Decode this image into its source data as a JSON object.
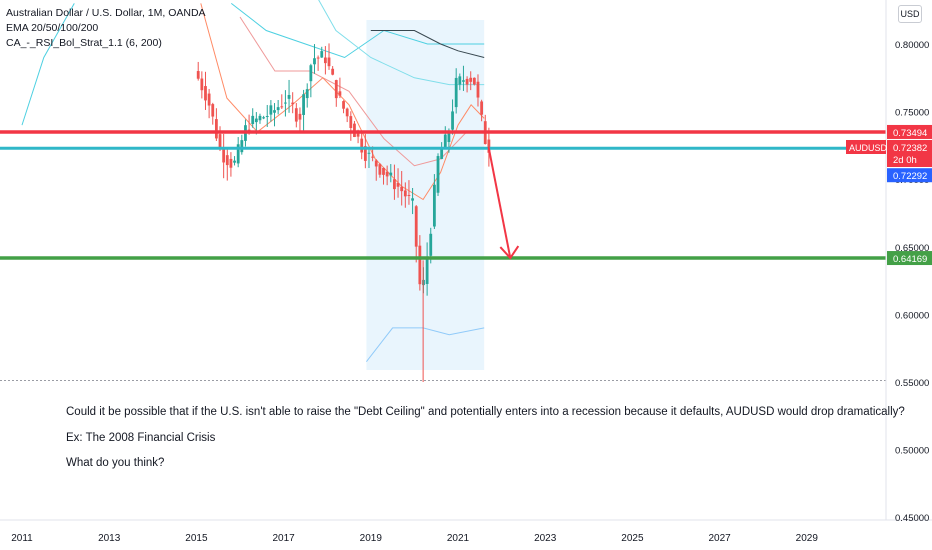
{
  "header": {
    "symbol_line": "Australian Dollar / U.S. Dollar, 1M, OANDA",
    "indicator_1": "EMA 20/50/100/200",
    "indicator_2": "CA_-_RSI_Bol_Strat_1.1 (6, 200)",
    "currency_button": "USD"
  },
  "annotation_lines": [
    "Could it be possible that if the U.S. isn't able to raise the \"Debt Ceiling\" and potentially enters into a recession because it defaults, AUDUSD would drop dramatically?",
    "Ex: The 2008 Financial Crisis",
    "What do you think?"
  ],
  "price_tags": {
    "red_level": "0.73494",
    "current_price": "0.72382",
    "countdown": "2d 0h",
    "blue_level": "0.72292",
    "green_level": "0.64169",
    "symbol_tag": "AUDUSD"
  },
  "colors": {
    "red_line": "#f23645",
    "blue_line": "#2fb7c8",
    "green_line": "#43a047",
    "candle_up": "#26a69a",
    "candle_down": "#ef5350",
    "arrow": "#f23645",
    "shade": "#e3f2fd"
  },
  "chart_data": {
    "type": "line",
    "title": "Australian Dollar / U.S. Dollar, 1M, OANDA",
    "x_ticks": [
      "2011",
      "2013",
      "2015",
      "2017",
      "2019",
      "2021",
      "2023",
      "2025",
      "2027",
      "2029"
    ],
    "y_ticks": [
      "0.80000",
      "0.75000",
      "0.70000",
      "0.65000",
      "0.60000",
      "0.55000",
      "0.50000",
      "0.45000"
    ],
    "ylim": [
      0.44,
      0.83
    ],
    "xlim": [
      2011.0,
      2030.6
    ],
    "price_series": {
      "x": [
        2015.0,
        2015.3,
        2015.6,
        2015.9,
        2016.2,
        2016.5,
        2016.8,
        2017.1,
        2017.4,
        2017.7,
        2018.0,
        2018.3,
        2018.6,
        2018.9,
        2019.2,
        2019.5,
        2019.8,
        2020.0,
        2020.2,
        2020.4,
        2020.6,
        2020.8,
        2021.0,
        2021.2,
        2021.4,
        2021.6,
        2021.7
      ],
      "y": [
        0.78,
        0.76,
        0.72,
        0.71,
        0.74,
        0.745,
        0.75,
        0.76,
        0.745,
        0.79,
        0.79,
        0.76,
        0.74,
        0.72,
        0.71,
        0.7,
        0.69,
        0.68,
        0.61,
        0.66,
        0.72,
        0.73,
        0.77,
        0.775,
        0.775,
        0.74,
        0.724
      ]
    },
    "horizontal_levels": [
      {
        "value": 0.73494,
        "color": "red"
      },
      {
        "value": 0.72292,
        "color": "blue"
      },
      {
        "value": 0.64169,
        "color": "green"
      }
    ],
    "projection": {
      "from_x": 2021.7,
      "from_y": 0.724,
      "to_x": 2022.2,
      "to_y": 0.64169
    },
    "shaded_band": {
      "x_start": 2018.9,
      "x_end": 2021.6
    },
    "grid": false,
    "legend": "top-left"
  }
}
